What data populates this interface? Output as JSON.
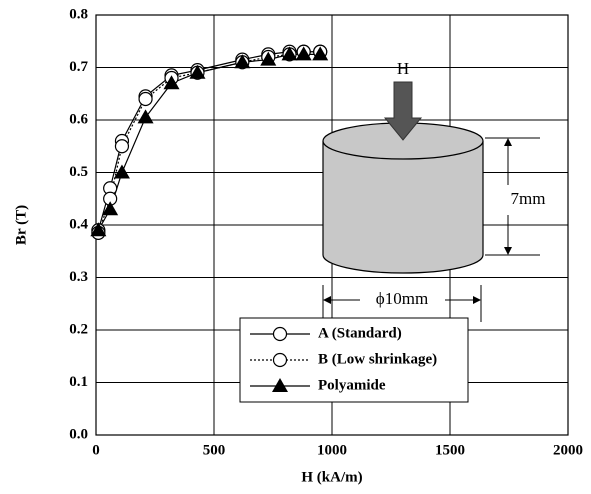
{
  "chart_data": {
    "type": "line",
    "xlabel": "H (kA/m)",
    "ylabel": "Br (T)",
    "xlim": [
      0,
      2000
    ],
    "xticks": [
      0,
      500,
      1000,
      1500,
      2000
    ],
    "ylim": [
      0,
      0.8
    ],
    "yticks": [
      {
        "value": 0,
        "label": "0.0"
      },
      0.1,
      0.2,
      0.3,
      0.4,
      0.5,
      0.6,
      0.7,
      0.8
    ],
    "grid": true,
    "annotations": [
      "H",
      "7mm",
      "ϕ10mm"
    ],
    "series": [
      {
        "name": "A (Standard)",
        "color": "#000000",
        "marker": "circle",
        "dash": "solid",
        "x": [
          10,
          60,
          110,
          210,
          320,
          430,
          620,
          730,
          820,
          880,
          950
        ],
        "values": [
          0.39,
          0.47,
          0.56,
          0.645,
          0.685,
          0.695,
          0.715,
          0.725,
          0.73,
          0.73,
          0.73
        ]
      },
      {
        "name": "B (Low shrinkage)",
        "color": "#000000",
        "marker": "circle",
        "dash": "dotted",
        "x": [
          10,
          60,
          110,
          210,
          320,
          430,
          620,
          730,
          820,
          880,
          950
        ],
        "values": [
          0.385,
          0.45,
          0.55,
          0.64,
          0.68,
          0.69,
          0.71,
          0.72,
          0.725,
          0.73,
          0.73
        ]
      },
      {
        "name": "Polyamide",
        "color": "#000000",
        "marker": "triangle",
        "dash": "solid",
        "x": [
          10,
          60,
          110,
          210,
          320,
          430,
          620,
          730,
          820,
          880,
          950
        ],
        "values": [
          0.39,
          0.43,
          0.5,
          0.605,
          0.67,
          0.69,
          0.71,
          0.715,
          0.725,
          0.725,
          0.725
        ]
      }
    ]
  }
}
